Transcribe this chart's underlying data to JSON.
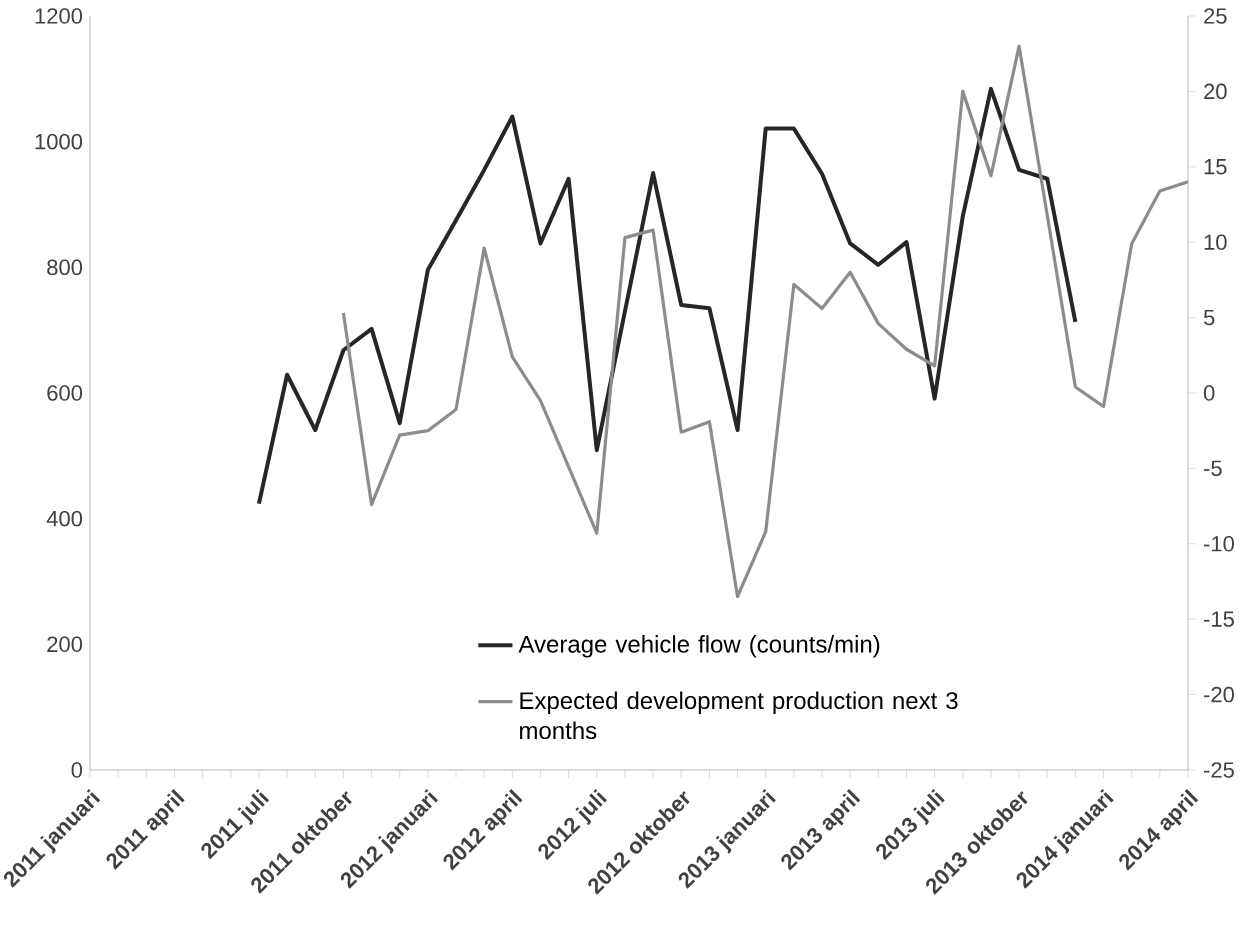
{
  "chart_data": {
    "type": "line",
    "categories": [
      "2011 januari",
      null,
      null,
      "2011 april",
      null,
      null,
      "2011 juli",
      null,
      null,
      "2011 oktober",
      null,
      null,
      "2012 januari",
      null,
      null,
      "2012 april",
      null,
      null,
      "2012 juli",
      null,
      null,
      "2012 oktober",
      null,
      null,
      "2013 januari",
      null,
      null,
      "2013 april",
      null,
      null,
      "2013 juli",
      null,
      null,
      "2013 oktober",
      null,
      null,
      "2014 januari",
      null,
      null,
      "2014 april"
    ],
    "series": [
      {
        "name": "Average vehicle flow (counts/min)",
        "color": "#262626",
        "values": [
          null,
          null,
          null,
          null,
          null,
          null,
          424,
          629,
          541,
          668,
          702,
          552,
          796,
          875,
          955,
          1040,
          838,
          941,
          509,
          730,
          950,
          740,
          735,
          541,
          1021,
          1021,
          949,
          838,
          804,
          840,
          591,
          881,
          1084,
          955,
          941,
          713,
          null,
          null,
          null,
          null
        ]
      },
      {
        "name": "Expected development production next 3 months",
        "color": "#8c8c8c",
        "axis": "y2",
        "values": [
          null,
          null,
          null,
          null,
          null,
          null,
          null,
          null,
          null,
          5.3,
          -7.4,
          -2.8,
          -2.5,
          -1.1,
          9.6,
          2.4,
          -0.5,
          -4.9,
          -9.3,
          10.3,
          10.8,
          -2.6,
          -1.9,
          -13.5,
          -9.2,
          7.2,
          5.6,
          8.0,
          4.6,
          2.9,
          1.8,
          20.0,
          14.4,
          23.0,
          11.8,
          0.4,
          -0.9,
          9.9,
          13.4,
          14.0
        ]
      }
    ],
    "ylim": [
      0,
      1200
    ],
    "yticks": [
      0,
      200,
      400,
      600,
      800,
      1000,
      1200
    ],
    "y2lim": [
      -25,
      25
    ],
    "y2ticks": [
      -25,
      -20,
      -15,
      -10,
      -5,
      0,
      5,
      10,
      15,
      20,
      25
    ],
    "grid": false,
    "legend": "bottom"
  }
}
